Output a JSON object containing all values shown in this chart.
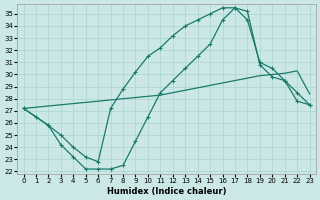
{
  "xlabel": "Humidex (Indice chaleur)",
  "xlim": [
    -0.5,
    23.5
  ],
  "ylim": [
    21.8,
    35.8
  ],
  "yticks": [
    22,
    23,
    24,
    25,
    26,
    27,
    28,
    29,
    30,
    31,
    32,
    33,
    34,
    35
  ],
  "xticks": [
    0,
    1,
    2,
    3,
    4,
    5,
    6,
    7,
    8,
    9,
    10,
    11,
    12,
    13,
    14,
    15,
    16,
    17,
    18,
    19,
    20,
    21,
    22,
    23
  ],
  "bg_color": "#cce8e6",
  "grid_color": "#b0d8d4",
  "line_color": "#1a7a6e",
  "line1_x": [
    0,
    1,
    2,
    3,
    4,
    5,
    6,
    7,
    8,
    9,
    10,
    11,
    12,
    13,
    14,
    15,
    16,
    17,
    18,
    19,
    20,
    21,
    22,
    23
  ],
  "line1_y": [
    27.2,
    27.3,
    27.4,
    27.5,
    27.6,
    27.7,
    27.8,
    27.9,
    28.0,
    28.1,
    28.2,
    28.3,
    28.5,
    28.7,
    28.9,
    29.1,
    29.3,
    29.5,
    29.7,
    29.9,
    30.0,
    30.1,
    30.3,
    28.4
  ],
  "line2_x": [
    0,
    2,
    3,
    4,
    5,
    6,
    7,
    8,
    9,
    10,
    11,
    12,
    13,
    14,
    15,
    16,
    17,
    18,
    19,
    20,
    21,
    22,
    23
  ],
  "line2_y": [
    27.2,
    25.8,
    25.0,
    24.0,
    23.2,
    22.8,
    27.2,
    28.8,
    30.2,
    31.5,
    32.2,
    33.2,
    34.0,
    34.5,
    35.0,
    35.5,
    35.5,
    34.5,
    31.0,
    30.5,
    29.5,
    28.5,
    27.5
  ],
  "line3_x": [
    0,
    1,
    2,
    3,
    4,
    5,
    6,
    7,
    8,
    9,
    10,
    11,
    12,
    13,
    14,
    15,
    16,
    17,
    18,
    19,
    20,
    21,
    22,
    23
  ],
  "line3_y": [
    27.2,
    26.5,
    25.8,
    24.2,
    23.2,
    22.2,
    22.2,
    22.2,
    22.5,
    24.5,
    26.5,
    28.5,
    29.5,
    30.5,
    31.5,
    32.5,
    34.5,
    35.5,
    35.2,
    30.8,
    29.8,
    29.5,
    27.8,
    27.5
  ]
}
